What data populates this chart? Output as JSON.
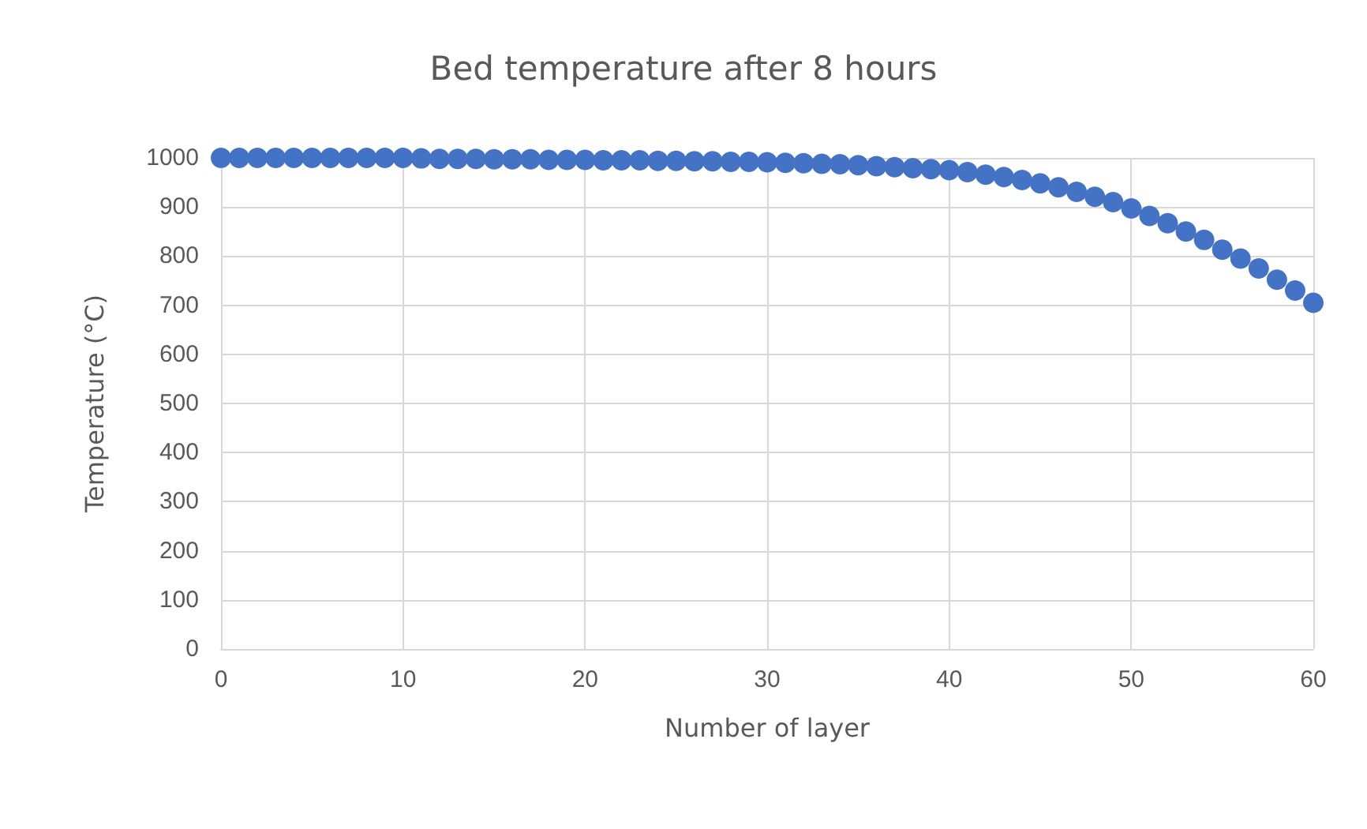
{
  "chart_data": {
    "type": "scatter",
    "title": "Bed temperature after 8 hours",
    "xlabel": "Number of layer",
    "ylabel": "Temperature (°C)",
    "x": [
      0,
      1,
      2,
      3,
      4,
      5,
      6,
      7,
      8,
      9,
      10,
      11,
      12,
      13,
      14,
      15,
      16,
      17,
      18,
      19,
      20,
      21,
      22,
      23,
      24,
      25,
      26,
      27,
      28,
      29,
      30,
      31,
      32,
      33,
      34,
      35,
      36,
      37,
      38,
      39,
      40,
      41,
      42,
      43,
      44,
      45,
      46,
      47,
      48,
      49,
      50,
      51,
      52,
      53,
      54,
      55,
      56,
      57,
      58,
      59,
      60
    ],
    "series": [
      {
        "color": "#4472c4",
        "values": [
          1000,
          1000,
          1000,
          1000,
          1000,
          1000,
          1000,
          1000,
          1000,
          1000,
          1000,
          999,
          998,
          998,
          998,
          997,
          997,
          997,
          996,
          996,
          996,
          995,
          995,
          995,
          994,
          994,
          993,
          993,
          992,
          992,
          991,
          990,
          989,
          988,
          987,
          985,
          983,
          981,
          979,
          977,
          975,
          971,
          966,
          961,
          955,
          948,
          940,
          931,
          921,
          910,
          897,
          882,
          867,
          850,
          833,
          813,
          795,
          775,
          752,
          730,
          705
        ]
      }
    ],
    "xlim": [
      0,
      60
    ],
    "xticks": [
      0,
      10,
      20,
      30,
      40,
      50,
      60
    ],
    "ylim": [
      0,
      1000
    ],
    "yticks": [
      0,
      100,
      200,
      300,
      400,
      500,
      600,
      700,
      800,
      900,
      1000
    ],
    "grid": true,
    "marker": "circle"
  }
}
